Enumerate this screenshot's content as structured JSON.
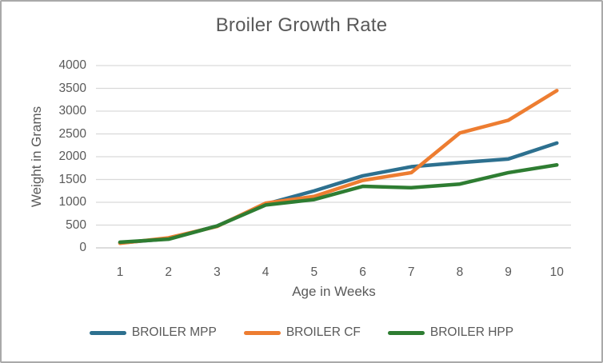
{
  "chart_data": {
    "type": "line",
    "title": "Broiler Growth Rate",
    "xlabel": "Age in Weeks",
    "ylabel": "Weight in Grams",
    "categories": [
      1,
      2,
      3,
      4,
      5,
      6,
      7,
      8,
      9,
      10
    ],
    "series": [
      {
        "name": "BROILER MPP",
        "color": "#2D708F",
        "values": [
          110,
          200,
          480,
          960,
          1250,
          1580,
          1780,
          1870,
          1950,
          2300
        ]
      },
      {
        "name": "BROILER CF",
        "color": "#ED7D31",
        "values": [
          100,
          220,
          470,
          980,
          1130,
          1480,
          1650,
          2520,
          2800,
          3450
        ]
      },
      {
        "name": "BROILER HPP",
        "color": "#2E7D32",
        "values": [
          125,
          190,
          480,
          940,
          1060,
          1350,
          1320,
          1400,
          1650,
          1820
        ]
      }
    ],
    "ylim": [
      0,
      4000
    ],
    "ytick_step": 500,
    "grid": true,
    "legend_position": "bottom"
  },
  "style": {
    "gridline_color": "#D9D9D9",
    "baseline_color": "#C6C6C6",
    "text_color": "#595959",
    "line_width": 4.5
  }
}
